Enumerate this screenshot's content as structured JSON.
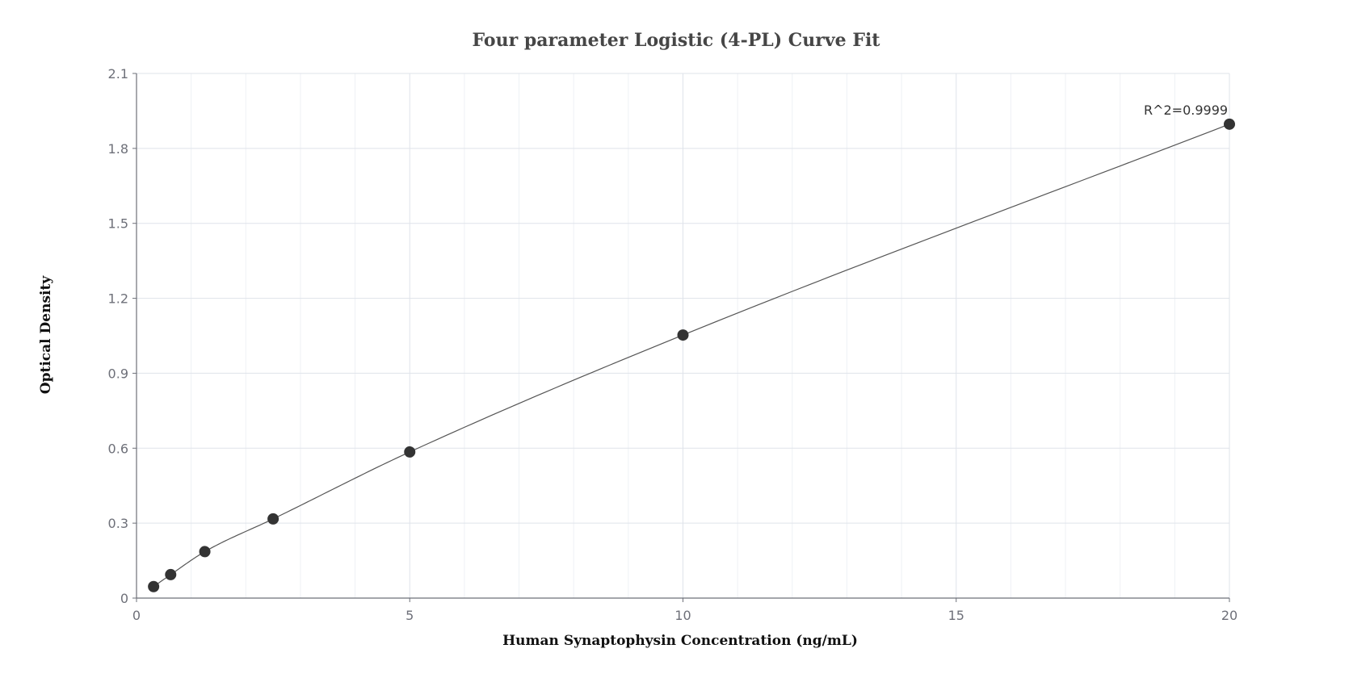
{
  "chart_data": {
    "type": "scatter",
    "title": "Four parameter Logistic (4-PL) Curve Fit",
    "xlabel": "Human Synaptophysin Concentration (ng/mL)",
    "ylabel": "Optical Density",
    "xlim": [
      0,
      20
    ],
    "ylim": [
      0,
      2.1
    ],
    "x_ticks": [
      "0",
      "5",
      "10",
      "15",
      "20"
    ],
    "y_ticks": [
      "0",
      "0.3",
      "0.6",
      "0.9",
      "1.2",
      "1.5",
      "1.8",
      "2.1"
    ],
    "grid": true,
    "series": [
      {
        "x": [
          0.3125,
          0.625,
          1.25,
          2.5,
          5,
          10,
          20
        ],
        "y": [
          0.046,
          0.094,
          0.186,
          0.317,
          0.585,
          1.053,
          1.897
        ],
        "fit_curve": true
      }
    ],
    "annotation": "R^2=0.9999",
    "colors": {
      "points": "#333333",
      "curve": "#555555",
      "grid_major": "#dfe3ea",
      "grid_minor": "#eef1f5",
      "axis": "#6e7079"
    }
  }
}
